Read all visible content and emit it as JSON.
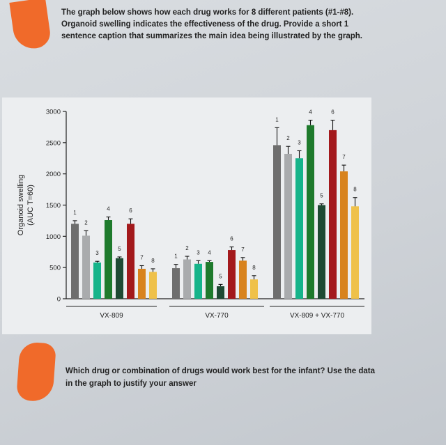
{
  "prompt_top": [
    "The graph below shows how each drug works for 8 different patients (#1-#8).",
    "Organoid swelling indicates the effectiveness of the drug.  Provide a short 1",
    "sentence caption that summarizes the main idea being illustrated by the graph."
  ],
  "prompt_bottom": [
    "Which drug or combination of drugs would work best for the infant?   Use the data",
    "in the graph to justify your answer"
  ],
  "colors": {
    "patient_1": "#6e6e6e",
    "patient_2": "#a9abad",
    "patient_3": "#16b48a",
    "patient_4": "#1e7a2c",
    "patient_5": "#1e4a33",
    "patient_6": "#a3191c",
    "patient_7": "#d8831e",
    "patient_8": "#efc14a",
    "marker": "#f06a2a"
  },
  "chart_data": {
    "type": "bar",
    "ylabel": "Organoid swelling (AUC T=60)",
    "ylim": [
      0,
      3000
    ],
    "yticks": [
      0,
      500,
      1000,
      1500,
      2000,
      2500,
      3000
    ],
    "grid": false,
    "legend": "none",
    "groups": [
      {
        "name": "VX-809",
        "patients": [
          "1",
          "2",
          "3",
          "4",
          "5",
          "6",
          "7",
          "8"
        ],
        "values": [
          1200,
          1010,
          580,
          1260,
          650,
          1200,
          480,
          430
        ],
        "errors": [
          50,
          80,
          20,
          50,
          20,
          80,
          50,
          50
        ]
      },
      {
        "name": "VX-770",
        "patients": [
          "1",
          "2",
          "3",
          "4",
          "5",
          "6",
          "7",
          "8"
        ],
        "values": [
          490,
          630,
          560,
          590,
          200,
          780,
          610,
          310
        ],
        "errors": [
          60,
          50,
          50,
          20,
          30,
          50,
          50,
          60
        ]
      },
      {
        "name": "VX-809 + VX-770",
        "patients": [
          "1",
          "2",
          "3",
          "4",
          "5",
          "6",
          "7",
          "8"
        ],
        "values": [
          2460,
          2320,
          2250,
          2780,
          1500,
          2700,
          2040,
          1480
        ],
        "errors": [
          280,
          120,
          120,
          80,
          20,
          160,
          100,
          140
        ]
      }
    ]
  }
}
